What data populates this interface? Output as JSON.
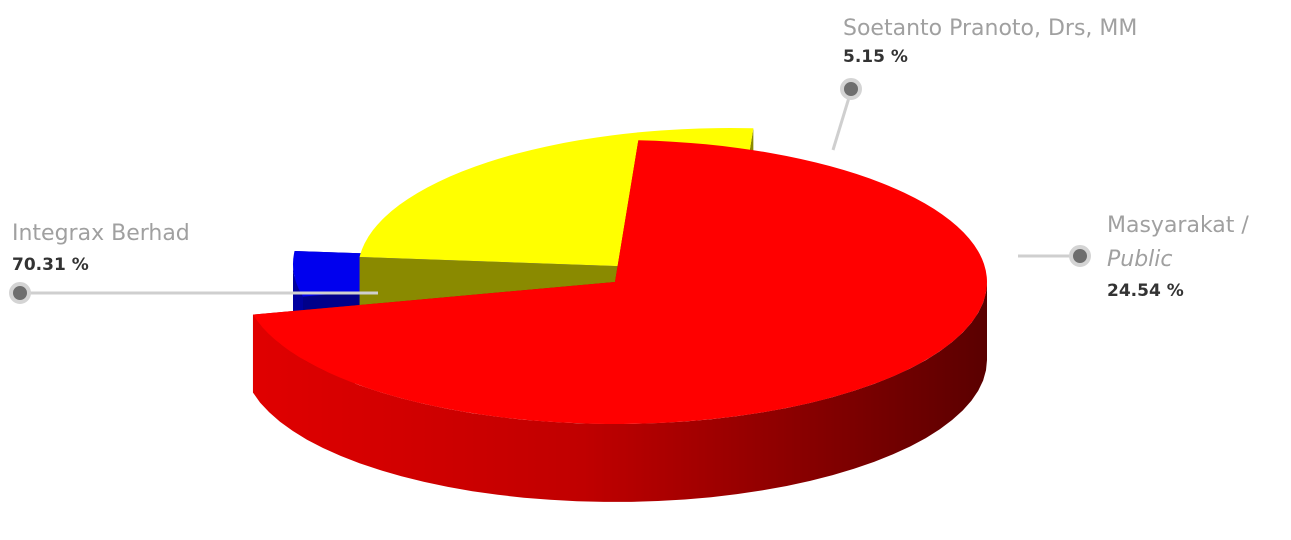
{
  "chart_data": {
    "type": "pie",
    "title": "",
    "slices": [
      {
        "label": "Integrax Berhad",
        "label_lines": [
          "Integrax Berhad"
        ],
        "value": 70.31,
        "value_label": "70.31 %",
        "color": "#ff0000"
      },
      {
        "label": "Soetanto Pranoto, Drs, MM",
        "label_lines": [
          "Soetanto Pranoto, Drs, MM"
        ],
        "value": 5.15,
        "value_label": "5.15 %",
        "color": "#0000ee"
      },
      {
        "label": "Masyarakat / Public",
        "label_lines": [
          "Masyarakat /",
          "Public"
        ],
        "value": 24.54,
        "value_label": "24.54 %",
        "color": "#ffff00"
      }
    ]
  }
}
